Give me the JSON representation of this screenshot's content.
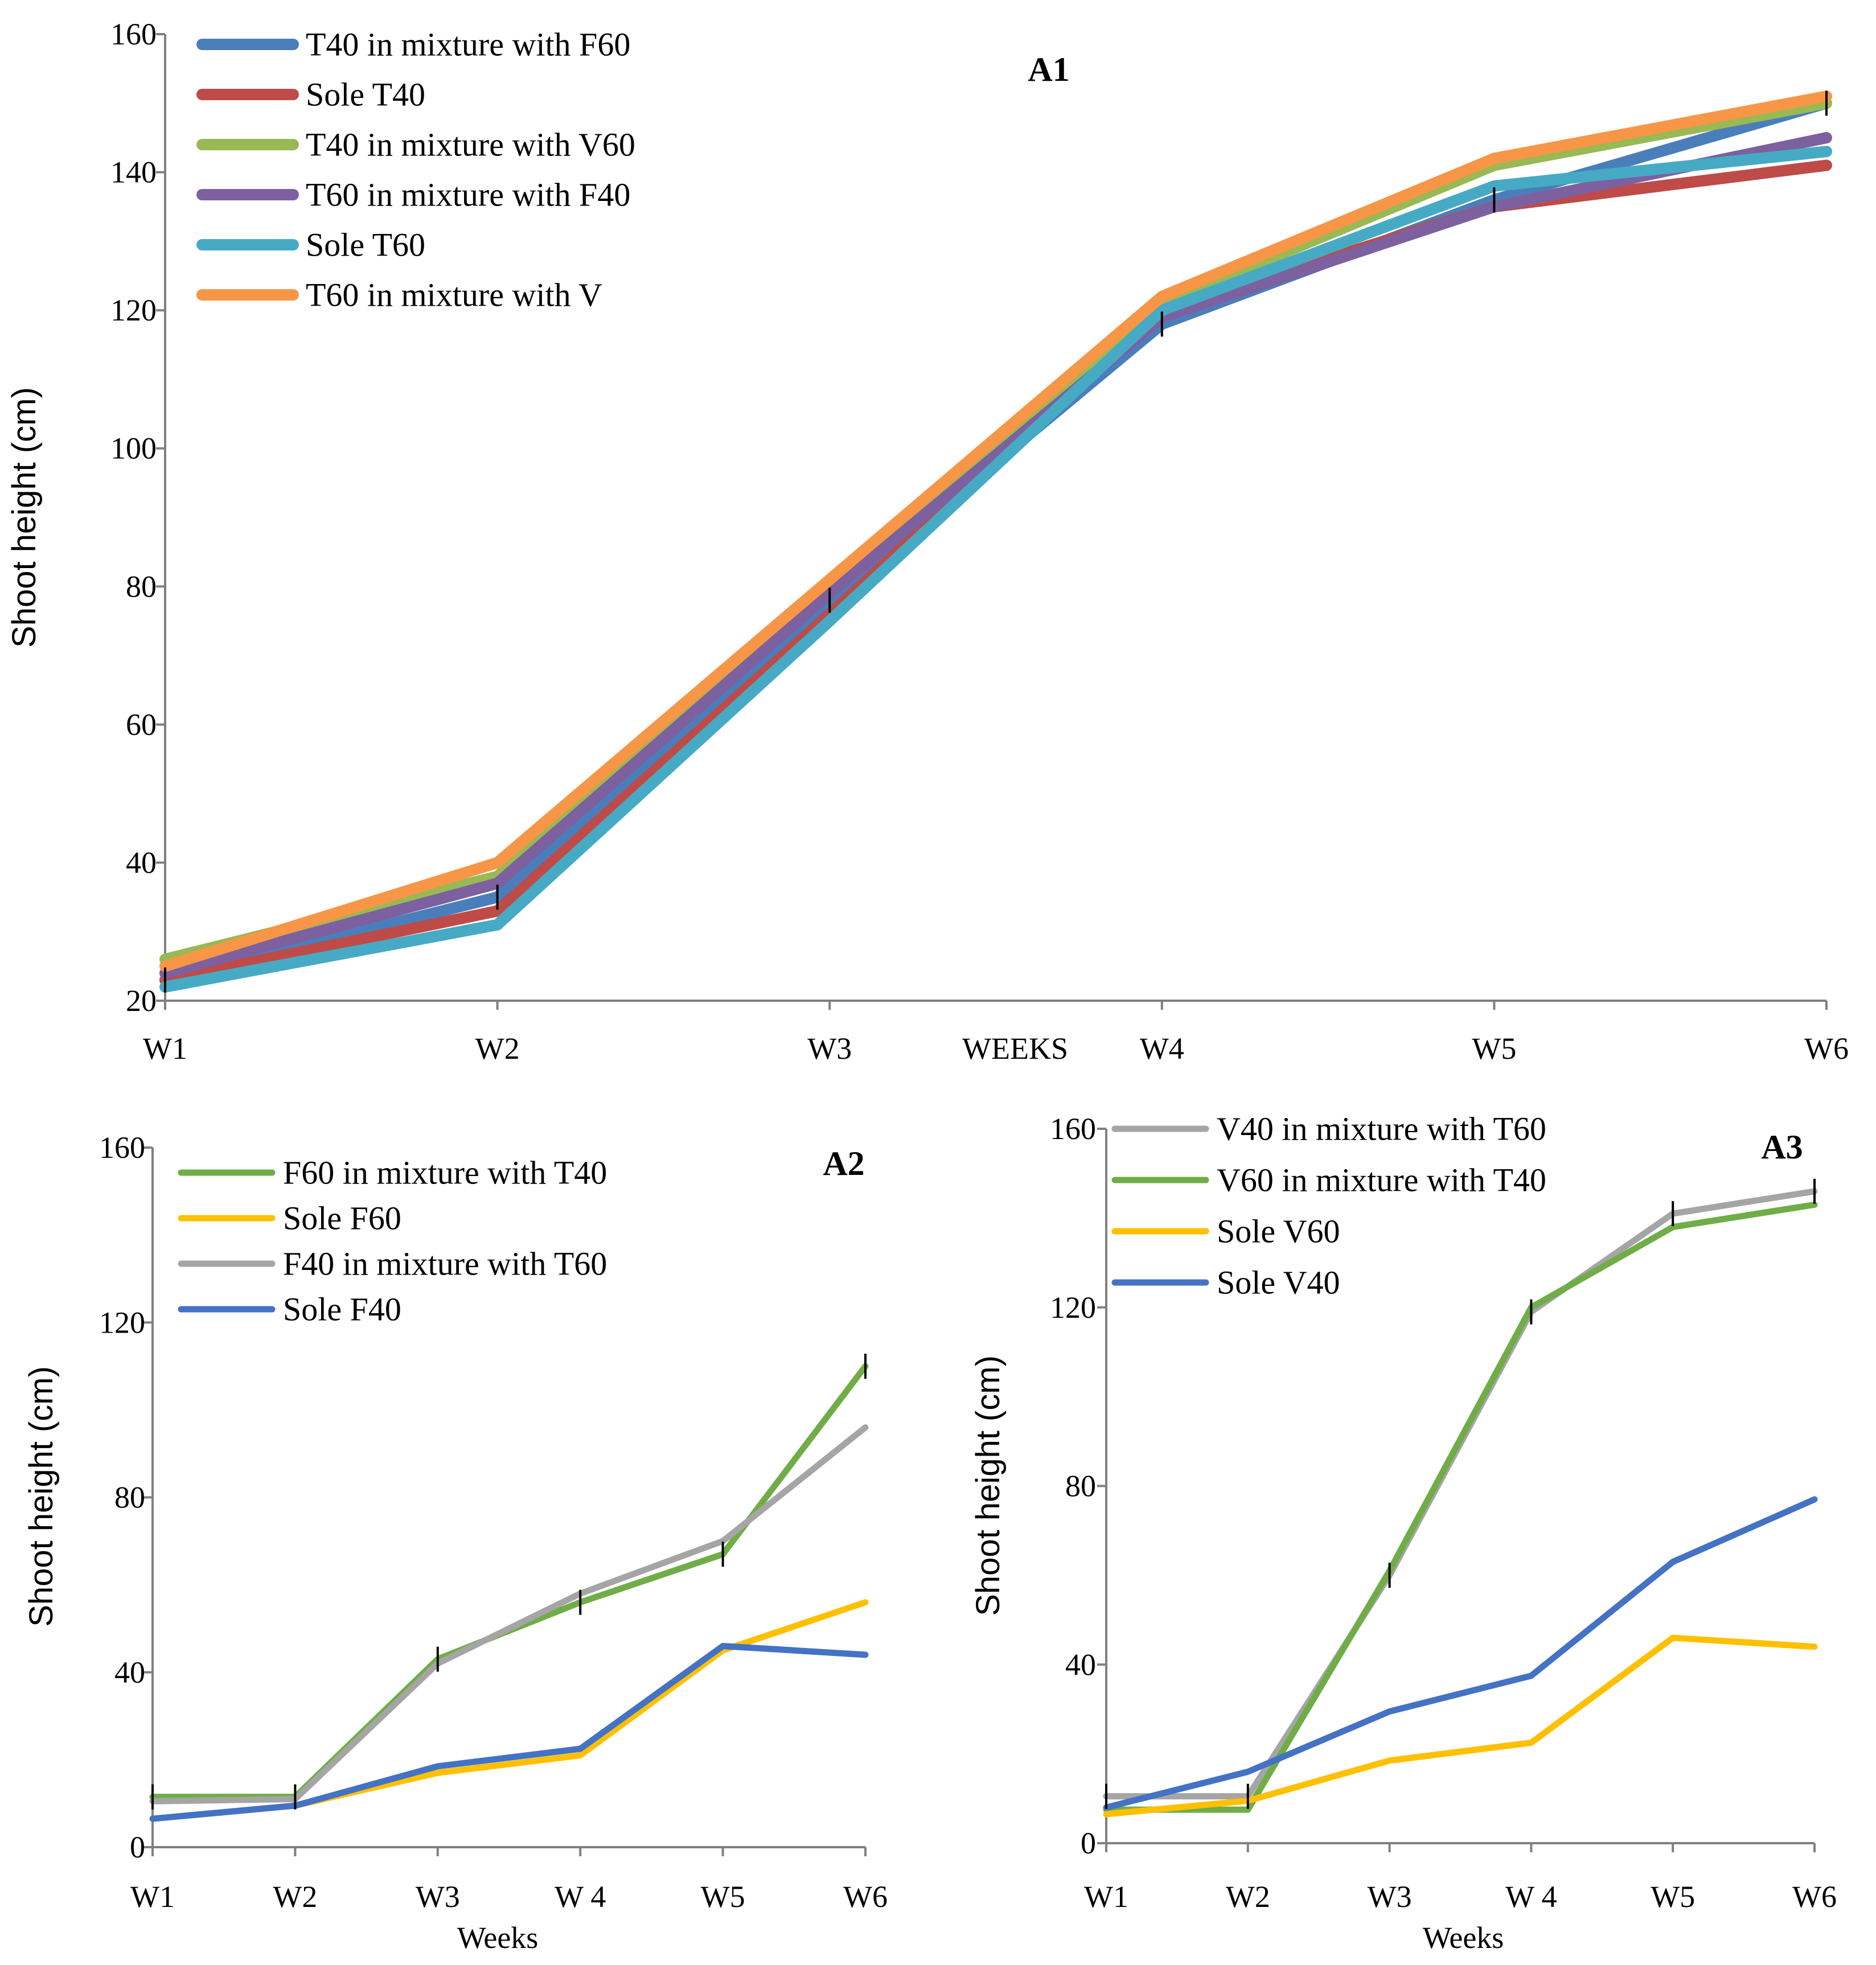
{
  "chart_data": [
    {
      "id": "A1",
      "type": "line",
      "title": "A1",
      "xlabel": "WEEKS",
      "ylabel": "Shoot height (cm)",
      "categories": [
        "W1",
        "W2",
        "W3",
        "W4",
        "W5",
        "W6"
      ],
      "ylim": [
        20,
        160
      ],
      "yticks": [
        20,
        40,
        60,
        80,
        100,
        120,
        140,
        160
      ],
      "legend_position": "top-left",
      "series": [
        {
          "name": "T40 in mixture with F60",
          "color": "#4A7EBB",
          "values": [
            23,
            35,
            78,
            118,
            136,
            150
          ]
        },
        {
          "name": "Sole T40",
          "color": "#BE4B48",
          "values": [
            23,
            33,
            76,
            120,
            135,
            141
          ]
        },
        {
          "name": "T40 in mixture with V60",
          "color": "#98B954",
          "values": [
            26,
            38,
            80,
            121,
            141,
            150
          ]
        },
        {
          "name": "T60 in mixture with F40",
          "color": "#7D60A0",
          "values": [
            24,
            37,
            79,
            119,
            135,
            145
          ]
        },
        {
          "name": "Sole T60",
          "color": "#46AAC5",
          "values": [
            22,
            31,
            75,
            120,
            138,
            143
          ]
        },
        {
          "name": "T60 in mixture with V",
          "color": "#F79646",
          "values": [
            25,
            40,
            81,
            122,
            142,
            151
          ]
        }
      ]
    },
    {
      "id": "A2",
      "type": "line",
      "title": "A2",
      "xlabel": "Weeks",
      "ylabel": "Shoot height (cm)",
      "categories": [
        "W1",
        "W2",
        "W3",
        "W 4",
        "W5",
        "W6"
      ],
      "ylim": [
        0,
        160
      ],
      "yticks": [
        0,
        40,
        80,
        120,
        160
      ],
      "legend_position": "top-left",
      "series": [
        {
          "name": "F60 in mixture with T40",
          "color": "#70AD47",
          "values": [
            11.5,
            11.5,
            43,
            56,
            67,
            110
          ]
        },
        {
          "name": "Sole F60",
          "color": "#FFC000",
          "values": [
            6.5,
            9.5,
            17,
            21,
            45,
            56
          ]
        },
        {
          "name": "F40 in mixture with T60",
          "color": "#A5A5A5",
          "values": [
            10.5,
            11,
            42,
            58,
            70,
            96
          ]
        },
        {
          "name": "Sole F40",
          "color": "#4472C4",
          "values": [
            6.5,
            9.5,
            18.5,
            22.5,
            46,
            44
          ]
        }
      ]
    },
    {
      "id": "A3",
      "type": "line",
      "title": "A3",
      "xlabel": "Weeks",
      "ylabel": "Shoot height (cm)",
      "categories": [
        "W1",
        "W2",
        "W3",
        "W 4",
        "W5",
        "W6"
      ],
      "ylim": [
        0,
        160
      ],
      "yticks": [
        0,
        40,
        80,
        120,
        160
      ],
      "legend_position": "top-left",
      "series": [
        {
          "name": "V40 in mixture with T60",
          "color": "#A5A5A5",
          "values": [
            10.5,
            10.5,
            60,
            119,
            141,
            146
          ]
        },
        {
          "name": "V60 in mixture with T40",
          "color": "#70AD47",
          "values": [
            7.5,
            7.5,
            61,
            120,
            138,
            143
          ]
        },
        {
          "name": "Sole V60",
          "color": "#FFC000",
          "values": [
            6.5,
            9.5,
            18.5,
            22.5,
            46,
            44
          ]
        },
        {
          "name": "Sole V40",
          "color": "#4472C4",
          "values": [
            8,
            16,
            29.5,
            37.5,
            63,
            77
          ]
        }
      ]
    }
  ]
}
